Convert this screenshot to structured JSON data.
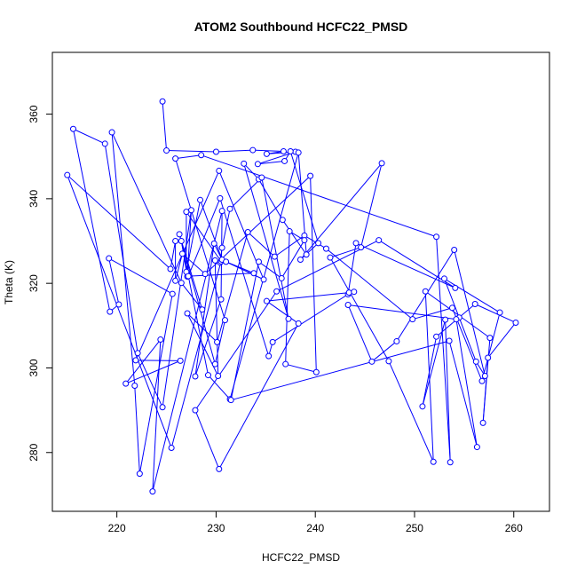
{
  "chart_data": {
    "type": "line",
    "title": "ATOM2 Southbound HCFC22_PMSD",
    "xlabel": "HCFC22_PMSD",
    "ylabel": "Theta (K)",
    "xlim": [
      213.5,
      263.6
    ],
    "ylim": [
      266.1,
      374.6
    ],
    "xticks": [
      220,
      230,
      240,
      250,
      260
    ],
    "yticks": [
      280,
      300,
      320,
      340,
      360
    ],
    "line_color": "#0000ff",
    "marker": "open-circle",
    "grid": false,
    "legend": "none",
    "series": [
      {
        "x": [
          224.6,
          225.0,
          230.0,
          233.7,
          236.8,
          235.1,
          238.0,
          234.2,
          236.9,
          237.5,
          240.3,
          238.5,
          246.7,
          244.6,
          241.5,
          247.4,
          251.9,
          251.1,
          257.6,
          256.9,
          257.4,
          260.2,
          256.1,
          252.2,
          250.8,
          253.1,
          253.6,
          252.2,
          228.5,
          225.9,
          230.9,
          229.9,
          226.3,
          228.6,
          226.5,
          219.5,
          221.8,
          222.3,
          225.6,
          219.2,
          220.2,
          219.3,
          215.6,
          218.8,
          222.1,
          224.6,
          227.5,
          227.1,
          226.5,
          229.2,
          231.4,
          238.3,
          239.1,
          236.7,
          234.3,
          232.8,
          237.3,
          234.6,
          231.4,
          230.6,
          230.4,
          229.9,
          230.2,
          227.1,
          230.1,
          233.2,
          235.9,
          238.9,
          241.1,
          249.8,
          253.8,
          256.8,
          258.6,
          253.0,
          254.5,
          256.2,
          257.1,
          254.0,
          248.2,
          245.7,
          243.3,
          254.2,
          256.3,
          253.5,
          231.5,
          234.3,
          236.6,
          238.9,
          237.4,
          237.0,
          240.1,
          239.5,
          228.9,
          226.6,
          225.9,
          225.9,
          225.4,
          215.0,
          225.5,
          230.5,
          227.0,
          227.0,
          228.4,
          230.6,
          229.8,
          227.9,
          230.5,
          230.6,
          223.6,
          224.4,
          220.9,
          226.4,
          221.9,
          230.3,
          234.8,
          231.0,
          233.8,
          227.2,
          230.4,
          235.3,
          235.7,
          243.3,
          244.1,
          254.1,
          246.4,
          236.1,
          227.9,
          230.3,
          238.3,
          235.1,
          243.4,
          243.9
        ],
        "y": [
          363.0,
          351.4,
          351.1,
          351.5,
          351.2,
          350.6,
          351.1,
          348.2,
          348.9,
          351.2,
          329.5,
          325.6,
          348.4,
          328.5,
          326.1,
          301.6,
          277.8,
          318.1,
          307.1,
          287.0,
          302.4,
          310.7,
          315.1,
          307.4,
          290.9,
          311.4,
          277.7,
          331.0,
          350.3,
          349.5,
          311.3,
          300.9,
          331.6,
          313.8,
          320.1,
          355.7,
          295.8,
          275.0,
          317.5,
          325.9,
          315.0,
          313.3,
          356.5,
          353.0,
          303.5,
          290.7,
          337.3,
          321.6,
          330.0,
          298.3,
          292.6,
          350.9,
          326.8,
          335.0,
          344.6,
          348.3,
          311.6,
          345.0,
          337.6,
          328.4,
          324.9,
          325.4,
          298.1,
          312.9,
          306.1,
          332.1,
          326.3,
          331.3,
          328.2,
          311.5,
          314.2,
          296.9,
          313.1,
          321.1,
          311.9,
          301.5,
          298.1,
          327.9,
          306.3,
          301.5,
          314.9,
          311.5,
          281.3,
          306.4,
          292.4,
          325.1,
          321.2,
          330.2,
          332.3,
          300.9,
          299.0,
          345.4,
          322.2,
          327.0,
          320.6,
          330.0,
          323.4,
          345.6,
          281.1,
          325.2,
          336.9,
          322.7,
          339.7,
          325.6,
          329.4,
          298.0,
          316.2,
          337.1,
          270.8,
          306.7,
          296.3,
          301.7,
          301.8,
          346.6,
          320.9,
          325.1,
          322.4,
          321.7,
          340.1,
          302.8,
          306.1,
          317.4,
          329.5,
          318.9,
          330.2,
          318.1,
          290.0,
          276.1,
          310.5,
          315.8,
          317.8,
          318.0
        ]
      }
    ]
  }
}
